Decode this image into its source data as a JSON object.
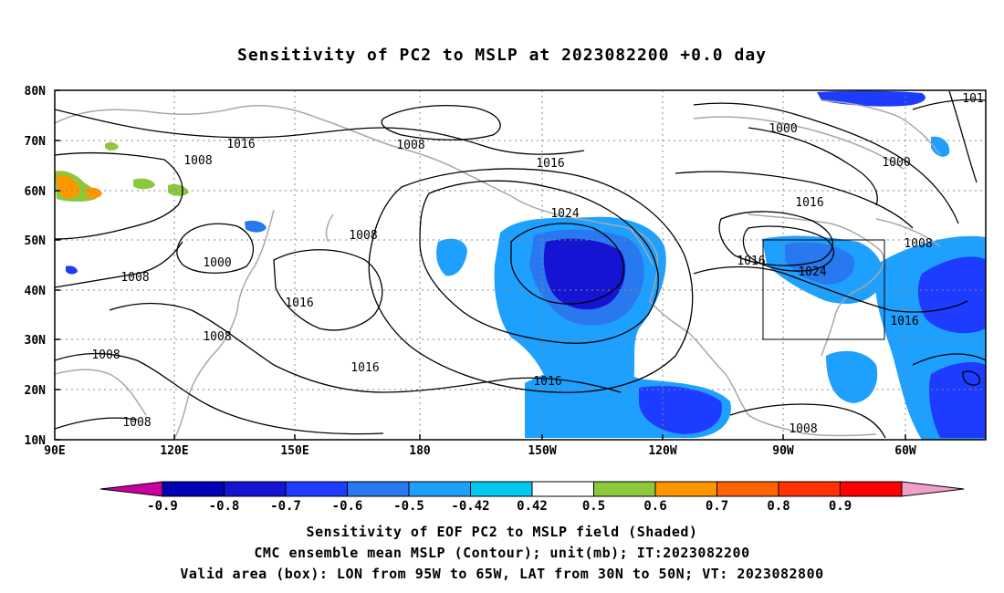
{
  "title": "Sensitivity of PC2 to MSLP at 2023082200 +0.0 day",
  "axes": {
    "lon_labels": [
      "90E",
      "120E",
      "150E",
      "180",
      "150W",
      "120W",
      "90W",
      "60W"
    ],
    "lat_labels": [
      "10N",
      "20N",
      "30N",
      "40N",
      "50N",
      "60N",
      "70N",
      "80N"
    ]
  },
  "contour_labels": [
    "1016",
    "1008",
    "1008",
    "1008",
    "1000",
    "1008",
    "1016",
    "1008",
    "1008",
    "1016",
    "1024",
    "1016",
    "1016",
    "1000",
    "1000",
    "1016",
    "1008",
    "1016",
    "1024",
    "1016",
    "1008",
    "101"
  ],
  "colorbar": {
    "labels": [
      "-0.9",
      "-0.8",
      "-0.7",
      "-0.6",
      "-0.5",
      "-0.42",
      "0.42",
      "0.5",
      "0.6",
      "0.7",
      "0.8",
      "0.9"
    ],
    "colors": [
      "#c800a0",
      "#0000b4",
      "#1414d2",
      "#1e3cff",
      "#2878f0",
      "#1ea0ff",
      "#00c8f0",
      "#ffffff",
      "#8cc83c",
      "#ff9600",
      "#ff6400",
      "#ff3200",
      "#ff0000",
      "#f0a0c8"
    ]
  },
  "captions": {
    "line1": "Sensitivity of EOF PC2 to MSLP field (Shaded)",
    "line2": "CMC ensemble mean MSLP (Contour); unit(mb); IT:2023082200",
    "line3": "Valid area (box): LON from 95W to 65W, LAT from 30N to 50N; VT: 2023082800"
  }
}
